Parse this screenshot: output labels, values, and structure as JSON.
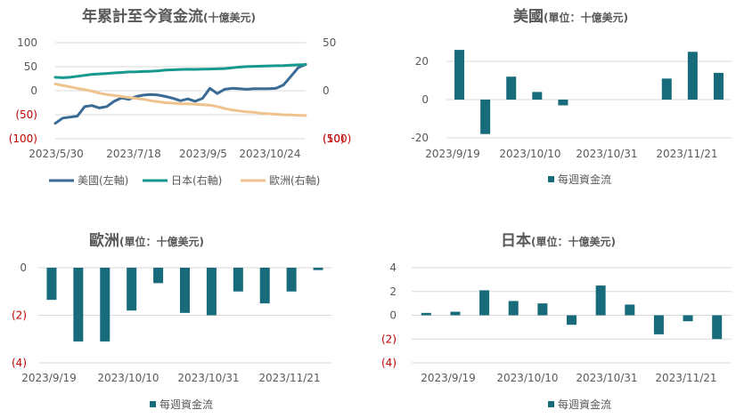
{
  "colors": {
    "us": "#3a6b94",
    "japan": "#15988e",
    "europe": "#eec38d",
    "bar": "#176b7b",
    "negative_label": "#c00000",
    "grid": "#d9d9d9",
    "text": "#595959"
  },
  "chart_data": [
    {
      "id": "ytd",
      "type": "line",
      "title": "年累計至今資金流",
      "subtitle": "(十億美元)",
      "x_tick_labels": [
        "2023/5/30",
        "2023/7/18",
        "2023/9/5",
        "2023/10/24"
      ],
      "y_left": {
        "range": [
          -100,
          100
        ],
        "ticks": [
          "100",
          "50",
          "0",
          "(50)",
          "(100)"
        ]
      },
      "y_right": {
        "range": [
          -50,
          50
        ],
        "ticks": [
          "50",
          "0",
          "(50)",
          "(100)"
        ]
      },
      "series": [
        {
          "name": "美國(左軸)",
          "axis": "left",
          "color_key": "us",
          "values": [
            -68,
            -57,
            -55,
            -53,
            -33,
            -31,
            -36,
            -33,
            -22,
            -15,
            -18,
            -12,
            -9,
            -8,
            -9,
            -12,
            -16,
            -21,
            -17,
            -22,
            -16,
            5,
            -6,
            3,
            5,
            4,
            3,
            4,
            4,
            4,
            5,
            12,
            30,
            48,
            55
          ]
        },
        {
          "name": "日本(右軸)",
          "axis": "right",
          "color_key": "japan",
          "values": [
            14,
            13.5,
            14,
            15,
            16,
            17,
            17.5,
            18,
            18.5,
            19,
            19.5,
            19.6,
            20,
            20.3,
            20.7,
            21.5,
            21.8,
            22.1,
            22.3,
            22.2,
            22.5,
            22.6,
            22.8,
            23.1,
            23.8,
            24.6,
            25.1,
            25.4,
            25.6,
            25.8,
            26,
            26.1,
            26.6,
            26.9,
            27.2
          ]
        },
        {
          "name": "歐洲(右軸)",
          "axis": "right",
          "color_key": "europe",
          "values": [
            7,
            5.5,
            4,
            2.5,
            1,
            -0.5,
            -2.5,
            -4,
            -5,
            -6,
            -7,
            -8,
            -9,
            -10.5,
            -11.5,
            -12.5,
            -13,
            -13.5,
            -13.7,
            -14,
            -14.5,
            -15,
            -16.5,
            -18.5,
            -20,
            -21,
            -22,
            -22.5,
            -23.5,
            -24,
            -24.5,
            -25,
            -25.3,
            -25.6,
            -25.8
          ]
        }
      ],
      "legend": [
        "美國(左軸)",
        "日本(右軸)",
        "歐洲(右軸)"
      ],
      "legend_position": "bottom"
    },
    {
      "id": "us",
      "type": "bar",
      "title": "美國",
      "subtitle": "(單位：十億美元)",
      "x_tick_labels": [
        "2023/9/19",
        "2023/10/10",
        "2023/10/31",
        "2023/11/21"
      ],
      "y_range": [
        -20,
        20
      ],
      "y_ticks": [
        "20",
        "0",
        "-20"
      ],
      "values": [
        26,
        -18,
        12,
        4,
        -3,
        0,
        0,
        0,
        11,
        25,
        14
      ],
      "legend": [
        "每週資金流"
      ],
      "legend_position": "bottom"
    },
    {
      "id": "europe",
      "type": "bar",
      "title": "歐洲",
      "subtitle": "(單位：十億美元)",
      "x_tick_labels": [
        "2023/9/19",
        "2023/10/10",
        "2023/10/31",
        "2023/11/21"
      ],
      "y_range": [
        -4,
        0
      ],
      "y_ticks": [
        "0",
        "(2)",
        "(4)"
      ],
      "values": [
        -1.35,
        -3.1,
        -3.1,
        -1.8,
        -0.65,
        -1.9,
        -2.0,
        -1.0,
        -1.5,
        -1.0,
        -0.1
      ],
      "legend": [
        "每週資金流"
      ],
      "legend_position": "bottom"
    },
    {
      "id": "japan",
      "type": "bar",
      "title": "日本",
      "subtitle": "(單位：十億美元)",
      "x_tick_labels": [
        "2023/9/19",
        "2023/10/10",
        "2023/10/31",
        "2023/11/21"
      ],
      "y_range": [
        -4,
        4
      ],
      "y_ticks": [
        "4",
        "2",
        "0",
        "(2)",
        "(4)"
      ],
      "values": [
        0.2,
        0.3,
        2.1,
        1.2,
        1.0,
        -0.8,
        2.5,
        0.9,
        -1.6,
        -0.5,
        -2.0
      ],
      "legend": [
        "每週資金流"
      ],
      "legend_position": "bottom"
    }
  ]
}
